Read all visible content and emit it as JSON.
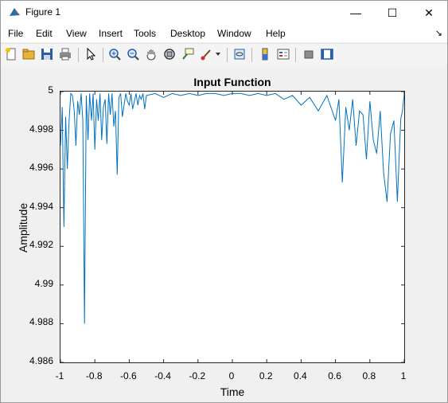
{
  "window": {
    "title": "Figure 1",
    "min_symbol": "—",
    "max_symbol": "☐",
    "close_symbol": "✕"
  },
  "menu": [
    "File",
    "Edit",
    "View",
    "Insert",
    "Tools",
    "Desktop",
    "Window",
    "Help"
  ],
  "menu_dock_symbol": "↘",
  "toolbar": {
    "icons": [
      "new-figure-icon",
      "open-file-icon",
      "save-icon",
      "print-icon",
      "pointer-icon",
      "zoom-in-icon",
      "zoom-out-icon",
      "pan-icon",
      "rotate-3d-icon",
      "data-cursor-icon",
      "brush-icon",
      "brush-dropdown-icon",
      "link-plot-icon",
      "insert-colorbar-icon",
      "insert-legend-icon",
      "hide-plot-tools-icon",
      "show-plot-tools-icon"
    ]
  },
  "chart_data": {
    "type": "line",
    "title": "Input Function",
    "xlabel": "Time",
    "ylabel": "Amplitude",
    "xlim": [
      -1,
      1
    ],
    "ylim": [
      4.986,
      5
    ],
    "xticks": [
      "-1",
      "-0.8",
      "-0.6",
      "-0.4",
      "-0.2",
      "0",
      "0.2",
      "0.4",
      "0.6",
      "0.8",
      "1"
    ],
    "yticks": [
      "5",
      "4.998",
      "4.996",
      "4.994",
      "4.992",
      "4.99",
      "4.988",
      "4.986"
    ],
    "grid": false,
    "line_color": "#0072bd",
    "x": [
      -1,
      -0.99,
      -0.98,
      -0.97,
      -0.96,
      -0.95,
      -0.94,
      -0.93,
      -0.92,
      -0.91,
      -0.9,
      -0.89,
      -0.88,
      -0.87,
      -0.86,
      -0.85,
      -0.84,
      -0.83,
      -0.82,
      -0.81,
      -0.8,
      -0.79,
      -0.78,
      -0.77,
      -0.76,
      -0.75,
      -0.74,
      -0.73,
      -0.72,
      -0.71,
      -0.7,
      -0.69,
      -0.68,
      -0.67,
      -0.66,
      -0.65,
      -0.64,
      -0.63,
      -0.62,
      -0.61,
      -0.6,
      -0.59,
      -0.58,
      -0.57,
      -0.56,
      -0.55,
      -0.54,
      -0.53,
      -0.52,
      -0.51,
      -0.5,
      -0.45,
      -0.4,
      -0.35,
      -0.3,
      -0.25,
      -0.2,
      -0.15,
      -0.1,
      -0.05,
      0,
      0.05,
      0.1,
      0.15,
      0.2,
      0.25,
      0.3,
      0.35,
      0.4,
      0.45,
      0.5,
      0.55,
      0.6,
      0.62,
      0.64,
      0.66,
      0.68,
      0.7,
      0.72,
      0.74,
      0.76,
      0.78,
      0.8,
      0.82,
      0.84,
      0.86,
      0.88,
      0.9,
      0.92,
      0.94,
      0.96,
      0.97,
      0.98,
      0.99,
      1
    ],
    "y": [
      4.9972,
      4.9992,
      4.993,
      4.9987,
      4.996,
      4.9985,
      4.9999,
      4.9998,
      4.999,
      4.9972,
      4.9995,
      4.9988,
      4.9999,
      4.9985,
      4.988,
      4.9998,
      4.9975,
      4.9999,
      4.9985,
      4.9999,
      4.997,
      4.9996,
      4.9985,
      4.9999,
      4.9975,
      4.9992,
      4.9996,
      4.9973,
      4.9999,
      4.9988,
      4.9999,
      4.9982,
      4.999,
      4.9957,
      4.9997,
      4.9999,
      4.9987,
      4.9993,
      4.9999,
      4.9995,
      4.9993,
      4.9999,
      4.9991,
      4.9995,
      4.9999,
      4.9993,
      4.9998,
      4.9996,
      4.9999,
      4.9991,
      4.9998,
      4.9999,
      4.9997,
      4.9999,
      4.9998,
      4.9999,
      4.9998,
      4.9999,
      4.9999,
      4.9998,
      4.9999,
      4.9999,
      4.9998,
      4.9999,
      4.9998,
      4.9999,
      4.9996,
      4.9998,
      4.9993,
      4.9997,
      4.999,
      4.9998,
      4.9985,
      4.9996,
      4.9953,
      4.9992,
      4.998,
      4.9996,
      4.9972,
      4.999,
      4.9988,
      4.9965,
      4.9995,
      4.9975,
      4.9968,
      4.999,
      4.9958,
      4.9943,
      4.9978,
      4.9985,
      4.9943,
      4.9965,
      4.9986,
      4.999,
      4.9999
    ]
  }
}
